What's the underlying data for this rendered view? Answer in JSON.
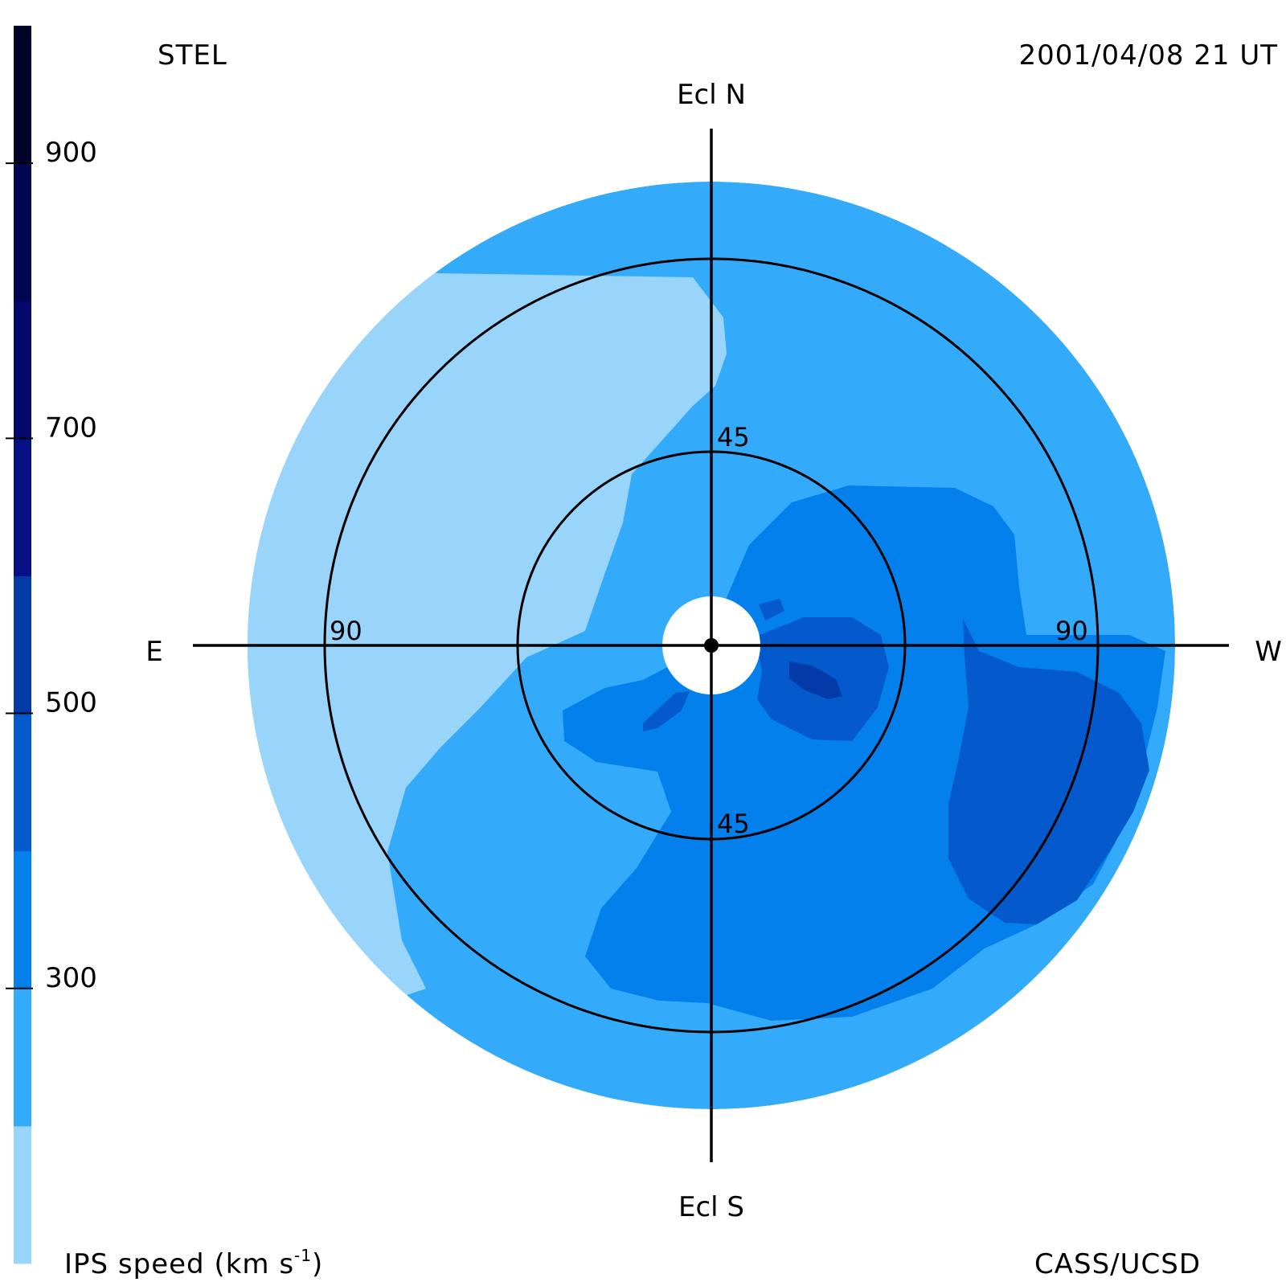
{
  "header": {
    "station": "STEL",
    "datetime": "2001/04/08 21 UT",
    "credit": "CASS/UCSD"
  },
  "colorbar": {
    "label_main": "IPS speed (km s",
    "label_sup": "-1",
    "label_close": ")",
    "ticks": [
      "300",
      "500",
      "700",
      "900"
    ],
    "tick_values": [
      300,
      500,
      700,
      900
    ],
    "range": [
      100,
      1000
    ],
    "bands": [
      {
        "from": 100,
        "to": 200,
        "color": "#99d5fa"
      },
      {
        "from": 200,
        "to": 300,
        "color": "#33aafa"
      },
      {
        "from": 300,
        "to": 400,
        "color": "#0380ec"
      },
      {
        "from": 400,
        "to": 500,
        "color": "#0459cc"
      },
      {
        "from": 500,
        "to": 600,
        "color": "#033aa8"
      },
      {
        "from": 600,
        "to": 700,
        "color": "#041084"
      },
      {
        "from": 700,
        "to": 800,
        "color": "#03086a"
      },
      {
        "from": 800,
        "to": 900,
        "color": "#020550"
      },
      {
        "from": 900,
        "to": 1000,
        "color": "#020328"
      }
    ]
  },
  "chart_data": {
    "type": "heatmap",
    "projection": "polar sky map centred on the Sun",
    "directions": {
      "top": "Ecl N",
      "bottom": "Ecl S",
      "left": "E",
      "right": "W"
    },
    "ring_labels": [
      "45",
      "45",
      "90",
      "90"
    ],
    "ring_elongations_deg": [
      45,
      90
    ],
    "max_elongation_deg": 108,
    "grid": true,
    "colors": {
      "c150": "#99d5fa",
      "c250": "#33aafa",
      "c350": "#0380ec",
      "c450": "#0459cc",
      "c550": "#033aa8"
    },
    "regions": [
      {
        "name": "slow-wind-east",
        "speed_band": "100-200",
        "description": "east and north-east sector"
      },
      {
        "name": "background",
        "speed_band": "200-300"
      },
      {
        "name": "southern-core",
        "speed_band": "300-400"
      },
      {
        "name": "western-enhancement",
        "speed_band": "400-500"
      },
      {
        "name": "near-sun-west",
        "speed_band": "500-600"
      }
    ]
  }
}
